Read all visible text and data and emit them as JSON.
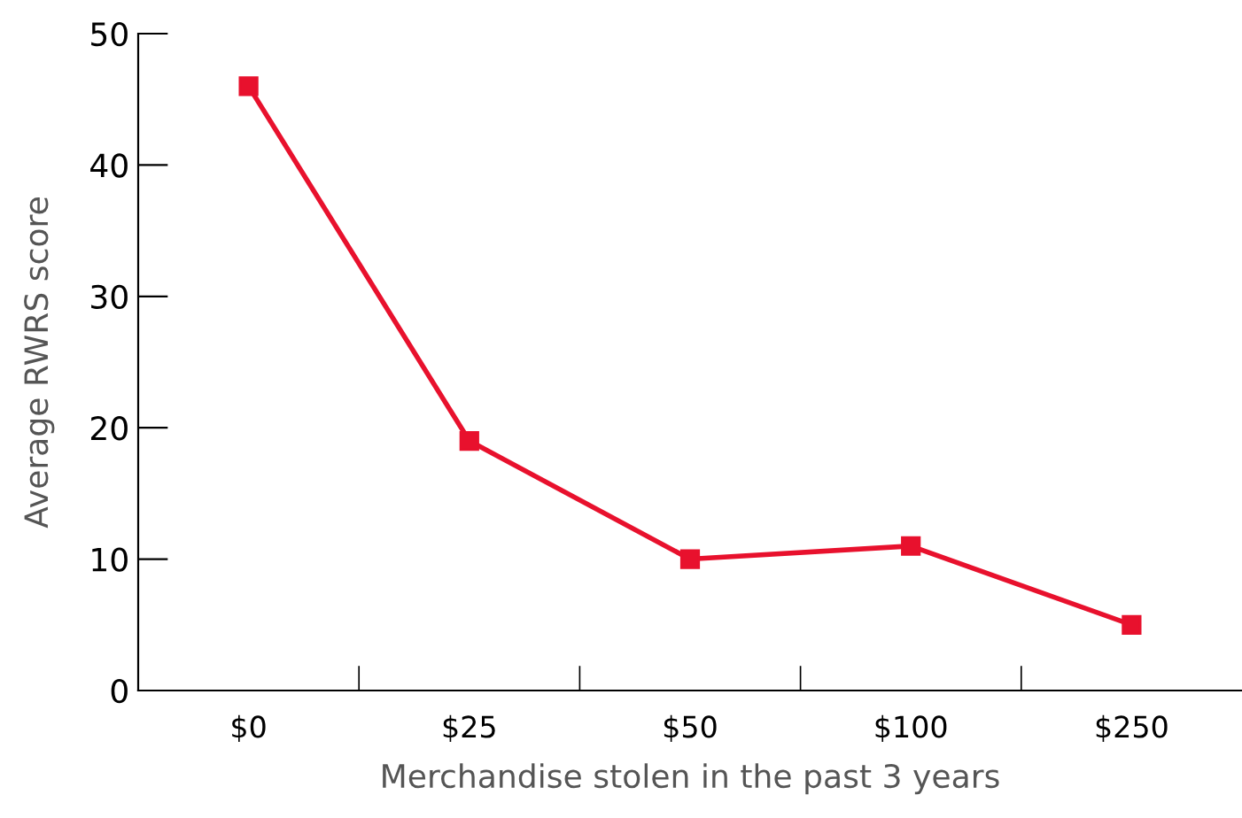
{
  "chart_data": {
    "type": "line",
    "xlabel": "Merchandise stolen in the past 3 years",
    "ylabel": "Average RWRS score",
    "categories": [
      "$0",
      "$25",
      "$50",
      "$100",
      "$250"
    ],
    "series": [
      {
        "color": "#e8112d",
        "values": [
          46,
          19,
          10,
          11,
          5
        ]
      }
    ],
    "ylim": [
      0,
      50
    ],
    "yticks": [
      0,
      10,
      20,
      30,
      40,
      50
    ],
    "marker": "square",
    "line_style": "solid",
    "grid": false,
    "legend": false
  }
}
